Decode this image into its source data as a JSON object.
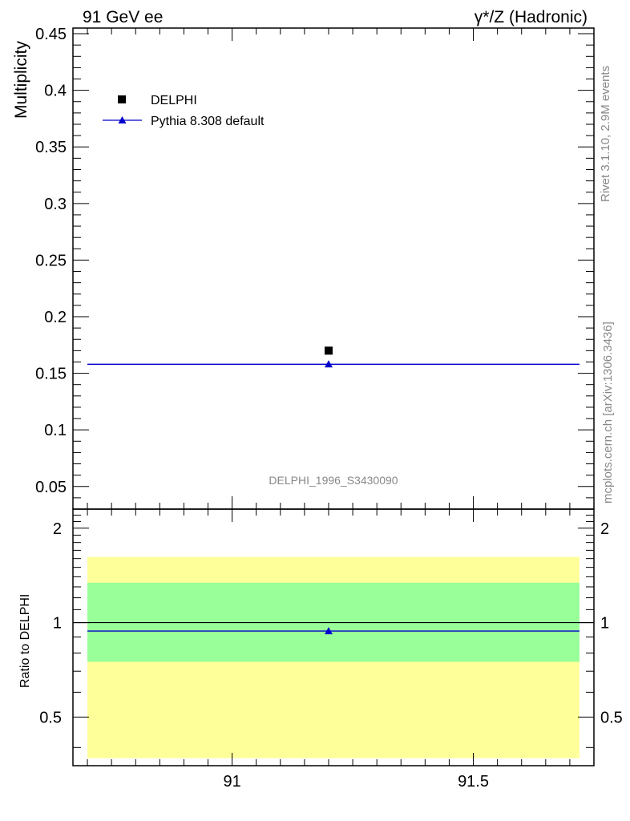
{
  "header": {
    "left_label": "91 GeV ee",
    "right_label": "γ*/Z (Hadronic)"
  },
  "side_labels": {
    "rivet": "Rivet 3.1.10,  2.9M events",
    "source": "mcplots.cern.ch [arXiv:1306.3436]"
  },
  "analysis_id": "DELPHI_1996_S3430090",
  "colors": {
    "mc": "#0000cc",
    "data": "#000000",
    "band_inner": "#99ff99",
    "band_outer": "#ffff99"
  },
  "chart_data": [
    {
      "type": "scatter",
      "ylabel": "Multiplicity",
      "xlim": [
        90.67,
        91.75
      ],
      "ylim": [
        0.03,
        0.455
      ],
      "y_ticks": [
        0.05,
        0.1,
        0.15,
        0.2,
        0.25,
        0.3,
        0.35,
        0.4,
        0.45
      ],
      "y_tick_labels": [
        "0.05",
        "0.1",
        "0.15",
        "0.2",
        "0.25",
        "0.3",
        "0.35",
        "0.4",
        "0.45"
      ],
      "legend_position": "top-left",
      "series": [
        {
          "name": "DELPHI",
          "marker": "square",
          "x": [
            91.2
          ],
          "y": [
            0.17
          ]
        },
        {
          "name": "Pythia 8.308 default",
          "marker": "triangle",
          "x": [
            91.2
          ],
          "y": [
            0.158
          ],
          "x_range": [
            90.7,
            91.72
          ]
        }
      ]
    },
    {
      "type": "scatter",
      "ylabel": "Ratio to DELPHI",
      "xlim": [
        90.67,
        91.75
      ],
      "ylim": [
        0.35,
        2.3
      ],
      "y_scale": "log",
      "y_ticks": [
        0.5,
        1,
        2
      ],
      "y_tick_labels": [
        "0.5",
        "1",
        "2"
      ],
      "x_ticks": [
        91,
        91.5
      ],
      "x_tick_labels": [
        "91",
        "91.5"
      ],
      "bands": [
        {
          "kind": "outer",
          "x_range": [
            90.7,
            91.72
          ],
          "y_range": [
            0.37,
            1.62
          ]
        },
        {
          "kind": "inner",
          "x_range": [
            90.7,
            91.72
          ],
          "y_range": [
            0.75,
            1.34
          ]
        }
      ],
      "series": [
        {
          "name": "Pythia 8.308 default",
          "marker": "triangle",
          "x": [
            91.2
          ],
          "y": [
            0.94
          ],
          "x_range": [
            90.7,
            91.72
          ]
        }
      ]
    }
  ]
}
